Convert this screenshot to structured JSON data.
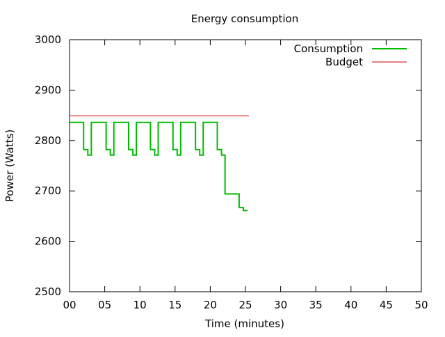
{
  "chart_data": {
    "type": "line",
    "title": "Energy consumption",
    "xlabel": "Time (minutes)",
    "ylabel": "Power (Watts)",
    "xlim": [
      0,
      50
    ],
    "ylim": [
      2500,
      3000
    ],
    "xticks": [
      "00",
      "05",
      "10",
      "15",
      "20",
      "25",
      "30",
      "35",
      "40",
      "45",
      "50"
    ],
    "yticks": [
      "2500",
      "2600",
      "2700",
      "2800",
      "2900",
      "3000"
    ],
    "grid": false,
    "legend_position": "top-right",
    "series": [
      {
        "name": "Consumption",
        "color": "#00bb00",
        "style": "step",
        "x": [
          0,
          2.0,
          2.6,
          3.1,
          5.2,
          5.8,
          6.3,
          8.4,
          9.0,
          9.5,
          11.5,
          12.1,
          12.6,
          14.7,
          15.3,
          15.8,
          17.9,
          18.5,
          19.0,
          21.0,
          21.6,
          22.1,
          24.1,
          24.7,
          25.3
        ],
        "y": [
          2836,
          2782,
          2771,
          2836,
          2782,
          2771,
          2836,
          2782,
          2771,
          2836,
          2782,
          2771,
          2836,
          2782,
          2771,
          2836,
          2782,
          2771,
          2836,
          2782,
          2771,
          2694,
          2667,
          2661,
          2661
        ]
      },
      {
        "name": "Budget",
        "color": "#cc0000",
        "style": "line",
        "x": [
          0,
          25.5
        ],
        "y": [
          2849,
          2849
        ]
      }
    ]
  }
}
